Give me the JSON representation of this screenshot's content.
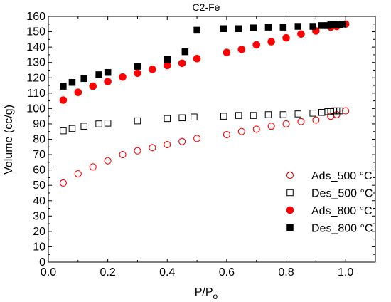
{
  "chart_data": {
    "type": "scatter",
    "title": "C2-Fe",
    "xlabel": "P/P",
    "xlabel_sub": "o",
    "ylabel": "Volume (cc/g)",
    "xlim": [
      0.0,
      1.1
    ],
    "ylim": [
      0,
      160
    ],
    "xticks": [
      0.0,
      0.2,
      0.4,
      0.6,
      0.8,
      1.0
    ],
    "xtick_labels": [
      "0.0",
      "0.2",
      "0.4",
      "0.6",
      "0.8",
      "1.0"
    ],
    "yticks": [
      0,
      10,
      20,
      30,
      40,
      50,
      60,
      70,
      80,
      90,
      100,
      110,
      120,
      130,
      140,
      150,
      160
    ],
    "ytick_labels": [
      "0",
      "10",
      "20",
      "30",
      "40",
      "50",
      "60",
      "70",
      "80",
      "90",
      "100",
      "110",
      "120",
      "130",
      "140",
      "150",
      "160"
    ],
    "legend_position": "lower-right",
    "grid": false,
    "series": [
      {
        "name": "Ads_500 °C",
        "marker": "circle-open",
        "color": "#ff0000",
        "x": [
          0.05,
          0.1,
          0.15,
          0.2,
          0.25,
          0.3,
          0.35,
          0.4,
          0.45,
          0.5,
          0.6,
          0.65,
          0.7,
          0.75,
          0.8,
          0.85,
          0.9,
          0.95,
          0.97,
          1.0
        ],
        "y": [
          51.5,
          57.5,
          62,
          66,
          70,
          72.5,
          74.5,
          76.5,
          78.5,
          80.5,
          83,
          85,
          86.5,
          88.5,
          90,
          91.5,
          92.5,
          95,
          96,
          98.5
        ]
      },
      {
        "name": "Des_500 °C",
        "marker": "square-open",
        "color": "#000000",
        "x": [
          0.05,
          0.08,
          0.12,
          0.17,
          0.2,
          0.3,
          0.4,
          0.45,
          0.49,
          0.59,
          0.64,
          0.69,
          0.74,
          0.79,
          0.84,
          0.89,
          0.92,
          0.94,
          0.95,
          0.96,
          0.97,
          0.98
        ],
        "y": [
          85.5,
          87,
          88.5,
          90,
          90.5,
          92,
          93.5,
          94,
          94.5,
          95,
          95.5,
          95.5,
          96,
          96,
          96.5,
          97,
          97.5,
          98,
          98,
          98.5,
          98.5,
          98.5
        ]
      },
      {
        "name": "Ads_800 °C",
        "marker": "circle-filled",
        "color": "#ff0000",
        "x": [
          0.05,
          0.1,
          0.15,
          0.2,
          0.25,
          0.3,
          0.35,
          0.4,
          0.45,
          0.5,
          0.6,
          0.65,
          0.7,
          0.75,
          0.8,
          0.85,
          0.9,
          0.95,
          0.97,
          1.0
        ],
        "y": [
          105.5,
          110.5,
          114.5,
          117.5,
          120.5,
          123,
          125.5,
          128,
          129.5,
          132.5,
          136.5,
          138.5,
          141.5,
          143.5,
          146,
          148.5,
          150.5,
          153,
          153.5,
          155
        ]
      },
      {
        "name": "Des_800 °C",
        "marker": "square-filled",
        "color": "#000000",
        "x": [
          0.05,
          0.08,
          0.12,
          0.17,
          0.2,
          0.3,
          0.4,
          0.46,
          0.5,
          0.59,
          0.64,
          0.69,
          0.74,
          0.79,
          0.84,
          0.89,
          0.92,
          0.94,
          0.95,
          0.96,
          0.97,
          0.98,
          0.99
        ],
        "y": [
          114.5,
          117,
          119.5,
          122,
          123.5,
          127.5,
          132,
          137,
          151,
          152,
          152,
          152.5,
          153,
          153,
          153.5,
          153.5,
          154,
          154,
          154.5,
          154.5,
          154.5,
          154.5,
          155
        ]
      }
    ]
  }
}
